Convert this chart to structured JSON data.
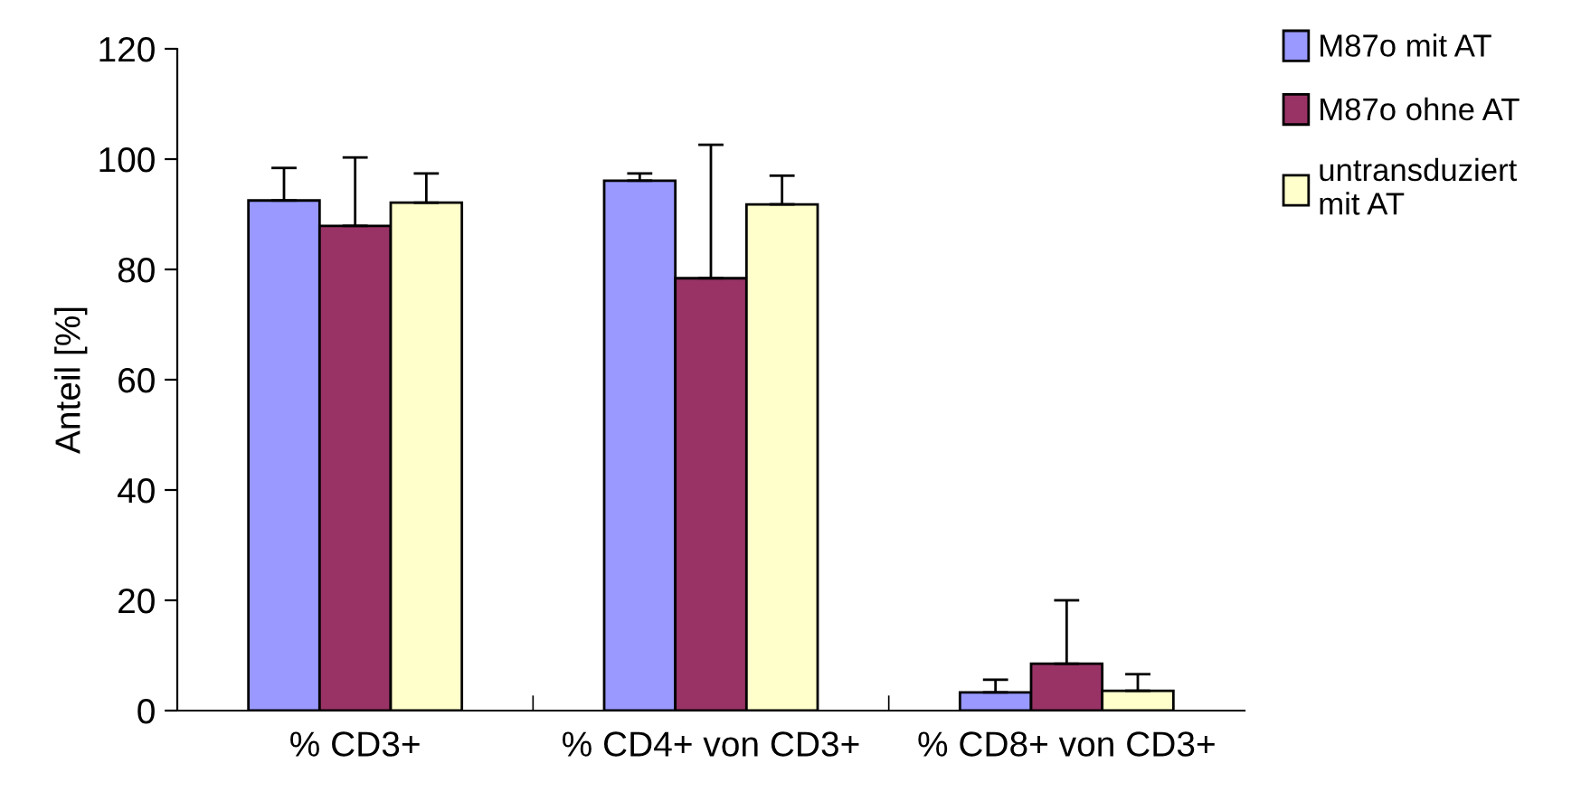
{
  "chart_data": {
    "type": "bar",
    "ylabel": "Anteil [%]",
    "categories": [
      "% CD3+",
      "% CD4+ von CD3+",
      "% CD8+ von CD3+"
    ],
    "series": [
      {
        "name": "M87o mit AT",
        "color": "#9999ff",
        "values": [
          92.5,
          96.1,
          3.3
        ],
        "errors": [
          [
            92.5,
            98.4
          ],
          [
            96.1,
            97.4
          ],
          [
            3.3,
            5.6
          ]
        ]
      },
      {
        "name": "M87o ohne AT",
        "color": "#993366",
        "values": [
          87.9,
          78.4,
          8.5
        ],
        "errors": [
          [
            87.9,
            100.3
          ],
          [
            78.4,
            102.6
          ],
          [
            8.5,
            20
          ]
        ]
      },
      {
        "name": "untransduziert\nmit AT",
        "color": "#ffffcc",
        "values": [
          92.1,
          91.8,
          3.6
        ],
        "errors": [
          [
            92.1,
            97.4
          ],
          [
            91.8,
            97
          ],
          [
            3.6,
            6.6
          ]
        ]
      }
    ],
    "ylim": [
      0,
      120
    ],
    "yticks": [
      0,
      20,
      40,
      60,
      80,
      100,
      120
    ],
    "grid": false,
    "legend": "right"
  }
}
